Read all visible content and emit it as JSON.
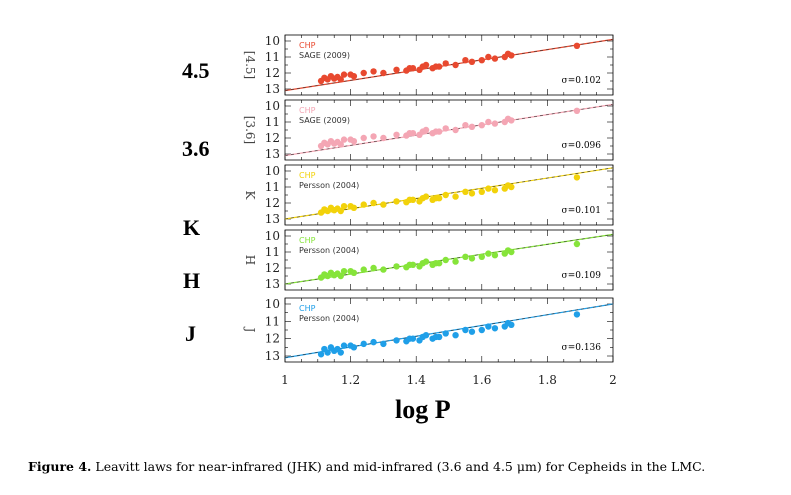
{
  "figure": {
    "caption_label": "Figure 4.",
    "caption_text": "Leavitt laws for near-infrared (JHK) and mid-infrared (3.6 and 4.5 μm) for Cepheids in the LMC.",
    "row_labels": [
      "4.5",
      "3.6",
      "K",
      "H",
      "J"
    ],
    "x_title": "log P"
  },
  "chart_data": [
    {
      "type": "scatter",
      "band": "4.5",
      "ylabel": "[4.5]",
      "legend": [
        "CHP",
        "SAGE (2009)"
      ],
      "sigma_label": "σ=0.102",
      "color": "#e8492f",
      "xlim": [
        1,
        2
      ],
      "ylim": [
        13,
        10
      ],
      "x_ticks": [
        "1",
        "1.2",
        "1.4",
        "1.6",
        "1.8",
        "2"
      ],
      "y_ticks": [
        "10",
        "11",
        "12",
        "13"
      ],
      "fit": {
        "x": [
          1,
          2
        ],
        "y": [
          13.1,
          9.9
        ]
      },
      "points": {
        "x": [
          1.11,
          1.12,
          1.13,
          1.14,
          1.15,
          1.16,
          1.17,
          1.18,
          1.2,
          1.21,
          1.24,
          1.27,
          1.3,
          1.34,
          1.37,
          1.38,
          1.39,
          1.41,
          1.42,
          1.43,
          1.45,
          1.46,
          1.47,
          1.49,
          1.52,
          1.55,
          1.57,
          1.6,
          1.62,
          1.64,
          1.67,
          1.68,
          1.69,
          1.89
        ],
        "y": [
          12.5,
          12.3,
          12.4,
          12.2,
          12.35,
          12.25,
          12.4,
          12.1,
          12.1,
          12.2,
          12.0,
          11.9,
          12.0,
          11.8,
          11.85,
          11.7,
          11.7,
          11.8,
          11.6,
          11.5,
          11.7,
          11.6,
          11.6,
          11.4,
          11.5,
          11.2,
          11.3,
          11.2,
          11.0,
          11.1,
          11.0,
          10.8,
          10.9,
          10.3
        ]
      }
    },
    {
      "type": "scatter",
      "band": "3.6",
      "ylabel": "[3.6]",
      "legend": [
        "CHP",
        "SAGE (2009)"
      ],
      "sigma_label": "σ=0.096",
      "color": "#f4a6b4",
      "xlim": [
        1,
        2
      ],
      "ylim": [
        13,
        10
      ],
      "x_ticks": [
        "1",
        "1.2",
        "1.4",
        "1.6",
        "1.8",
        "2"
      ],
      "y_ticks": [
        "10",
        "11",
        "12",
        "13"
      ],
      "fit": {
        "x": [
          1,
          2
        ],
        "y": [
          13.1,
          9.9
        ]
      },
      "points": {
        "x": [
          1.11,
          1.12,
          1.13,
          1.14,
          1.15,
          1.16,
          1.17,
          1.18,
          1.2,
          1.21,
          1.24,
          1.27,
          1.3,
          1.34,
          1.37,
          1.38,
          1.39,
          1.41,
          1.42,
          1.43,
          1.45,
          1.46,
          1.47,
          1.49,
          1.52,
          1.55,
          1.57,
          1.6,
          1.62,
          1.64,
          1.67,
          1.68,
          1.69,
          1.89
        ],
        "y": [
          12.5,
          12.3,
          12.4,
          12.2,
          12.35,
          12.25,
          12.4,
          12.1,
          12.1,
          12.2,
          12.0,
          11.9,
          12.0,
          11.8,
          11.85,
          11.7,
          11.7,
          11.8,
          11.6,
          11.5,
          11.7,
          11.6,
          11.6,
          11.4,
          11.5,
          11.2,
          11.3,
          11.2,
          11.0,
          11.1,
          11.0,
          10.8,
          10.9,
          10.3
        ]
      }
    },
    {
      "type": "scatter",
      "band": "K",
      "ylabel": "K",
      "legend": [
        "CHP",
        "Persson (2004)"
      ],
      "sigma_label": "σ=0.101",
      "color": "#f2d20a",
      "xlim": [
        1,
        2
      ],
      "ylim": [
        13,
        10
      ],
      "x_ticks": [
        "1",
        "1.2",
        "1.4",
        "1.6",
        "1.8",
        "2"
      ],
      "y_ticks": [
        "10",
        "11",
        "12",
        "13"
      ],
      "fit": {
        "x": [
          1,
          2
        ],
        "y": [
          13.0,
          9.8
        ]
      },
      "points": {
        "x": [
          1.11,
          1.12,
          1.13,
          1.14,
          1.15,
          1.16,
          1.17,
          1.18,
          1.2,
          1.21,
          1.24,
          1.27,
          1.3,
          1.34,
          1.37,
          1.38,
          1.39,
          1.41,
          1.42,
          1.43,
          1.45,
          1.46,
          1.47,
          1.49,
          1.52,
          1.55,
          1.57,
          1.6,
          1.62,
          1.64,
          1.67,
          1.68,
          1.69,
          1.89
        ],
        "y": [
          12.6,
          12.4,
          12.5,
          12.3,
          12.45,
          12.35,
          12.5,
          12.2,
          12.2,
          12.3,
          12.1,
          12.0,
          12.1,
          11.9,
          11.95,
          11.8,
          11.8,
          11.9,
          11.7,
          11.6,
          11.8,
          11.7,
          11.7,
          11.5,
          11.6,
          11.3,
          11.4,
          11.3,
          11.1,
          11.2,
          11.1,
          10.9,
          11.0,
          10.4
        ]
      }
    },
    {
      "type": "scatter",
      "band": "H",
      "ylabel": "H",
      "legend": [
        "CHP",
        "Persson (2004)"
      ],
      "sigma_label": "σ=0.109",
      "color": "#86e43a",
      "xlim": [
        1,
        2
      ],
      "ylim": [
        13,
        10
      ],
      "x_ticks": [
        "1",
        "1.2",
        "1.4",
        "1.6",
        "1.8",
        "2"
      ],
      "y_ticks": [
        "10",
        "11",
        "12",
        "13"
      ],
      "fit": {
        "x": [
          1,
          2
        ],
        "y": [
          13.0,
          9.9
        ]
      },
      "points": {
        "x": [
          1.11,
          1.12,
          1.13,
          1.14,
          1.15,
          1.16,
          1.17,
          1.18,
          1.2,
          1.21,
          1.24,
          1.27,
          1.3,
          1.34,
          1.37,
          1.38,
          1.39,
          1.41,
          1.42,
          1.43,
          1.45,
          1.46,
          1.47,
          1.49,
          1.52,
          1.55,
          1.57,
          1.6,
          1.62,
          1.64,
          1.67,
          1.68,
          1.69,
          1.89
        ],
        "y": [
          12.6,
          12.4,
          12.5,
          12.3,
          12.45,
          12.35,
          12.5,
          12.2,
          12.2,
          12.3,
          12.1,
          12.0,
          12.1,
          11.9,
          11.95,
          11.8,
          11.8,
          11.9,
          11.7,
          11.6,
          11.8,
          11.7,
          11.7,
          11.5,
          11.6,
          11.3,
          11.4,
          11.3,
          11.1,
          11.2,
          11.1,
          10.9,
          11.0,
          10.5
        ]
      }
    },
    {
      "type": "scatter",
      "band": "J",
      "ylabel": "J",
      "legend": [
        "CHP",
        "Persson (2004)"
      ],
      "sigma_label": "σ=0.136",
      "color": "#1f9fe8",
      "xlim": [
        1,
        2
      ],
      "ylim": [
        13,
        10
      ],
      "x_ticks": [
        "1",
        "1.2",
        "1.4",
        "1.6",
        "1.8",
        "2"
      ],
      "y_ticks": [
        "10",
        "11",
        "12",
        "13"
      ],
      "fit": {
        "x": [
          1,
          2
        ],
        "y": [
          13.1,
          10.0
        ]
      },
      "points": {
        "x": [
          1.11,
          1.12,
          1.13,
          1.14,
          1.15,
          1.16,
          1.17,
          1.18,
          1.2,
          1.21,
          1.24,
          1.27,
          1.3,
          1.34,
          1.37,
          1.38,
          1.39,
          1.41,
          1.42,
          1.43,
          1.45,
          1.46,
          1.47,
          1.49,
          1.52,
          1.55,
          1.57,
          1.6,
          1.62,
          1.64,
          1.67,
          1.68,
          1.69,
          1.89
        ],
        "y": [
          12.9,
          12.6,
          12.8,
          12.5,
          12.7,
          12.6,
          12.8,
          12.4,
          12.4,
          12.5,
          12.3,
          12.2,
          12.3,
          12.1,
          12.15,
          12.0,
          12.0,
          12.1,
          11.9,
          11.8,
          12.0,
          11.9,
          11.9,
          11.7,
          11.8,
          11.5,
          11.6,
          11.5,
          11.3,
          11.4,
          11.3,
          11.1,
          11.2,
          10.6
        ]
      }
    }
  ]
}
